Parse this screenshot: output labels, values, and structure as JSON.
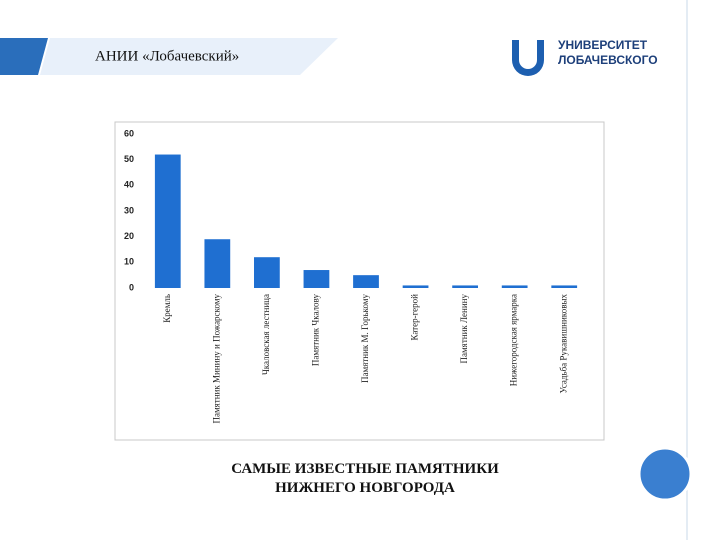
{
  "header": {
    "title": "АНИИ «Лобачевский»",
    "logo_line1": "УНИВЕРСИТЕТ",
    "logo_line2": "ЛОБАЧЕВСКОГО"
  },
  "chart_data": {
    "type": "bar",
    "title": "САМЫЕ ИЗВЕСТНЫЕ ПАМЯТНИКИ НИЖНЕГО НОВГОРОДА",
    "categories": [
      "Кремль",
      "Памятник Минину и Пожарскому",
      "Чкаловская лестница",
      "Памятник Чкалову",
      "Памятник М. Горькому",
      "Катер-герой",
      "Памятник Ленину",
      "Нижегородская ярмарка",
      "Усадьба Рукавишниковых"
    ],
    "values": [
      52,
      19,
      12,
      7,
      5,
      1,
      1,
      1,
      1
    ],
    "color": "#1f6fd1",
    "ylim": [
      0,
      60
    ],
    "yticks": [
      0,
      10,
      20,
      30,
      40,
      50,
      60
    ],
    "grid": false
  }
}
